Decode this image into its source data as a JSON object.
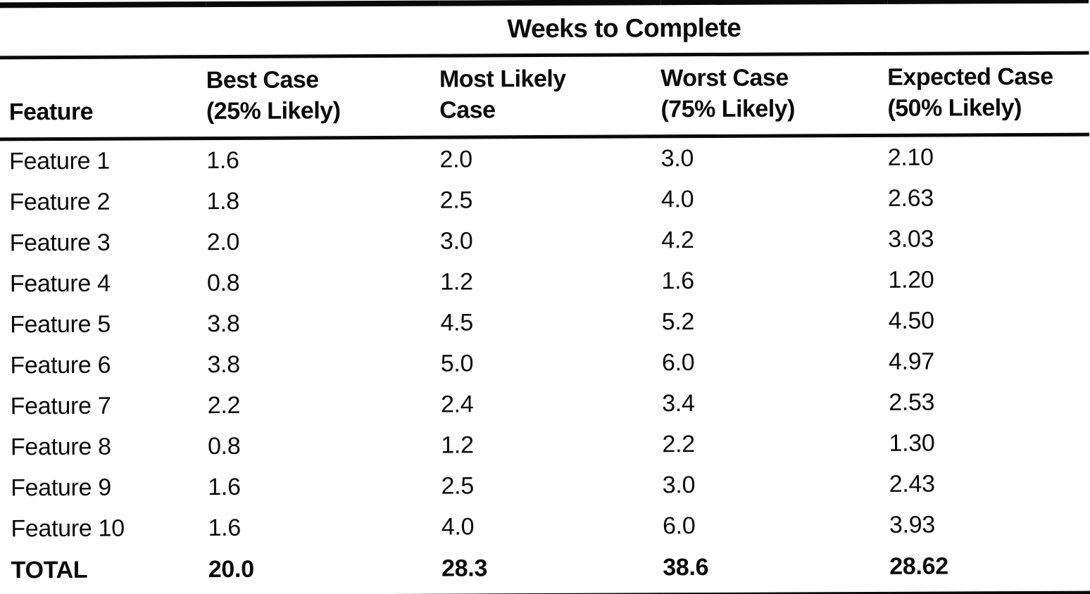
{
  "table": {
    "title": "Weeks to Complete",
    "headers": {
      "feature": "Feature",
      "best_case_line1": "Best Case",
      "best_case_line2": "(25% Likely)",
      "most_likely_line1": "Most Likely",
      "most_likely_line2": "Case",
      "worst_case_line1": "Worst Case",
      "worst_case_line2": "(75% Likely)",
      "expected_case_line1": "Expected Case",
      "expected_case_line2": "(50% Likely)"
    },
    "rows": [
      {
        "feature": "Feature 1",
        "best_case": "1.6",
        "most_likely": "2.0",
        "worst_case": "3.0",
        "expected_case": "2.10"
      },
      {
        "feature": "Feature 2",
        "best_case": "1.8",
        "most_likely": "2.5",
        "worst_case": "4.0",
        "expected_case": "2.63"
      },
      {
        "feature": "Feature 3",
        "best_case": "2.0",
        "most_likely": "3.0",
        "worst_case": "4.2",
        "expected_case": "3.03"
      },
      {
        "feature": "Feature 4",
        "best_case": "0.8",
        "most_likely": "1.2",
        "worst_case": "1.6",
        "expected_case": "1.20"
      },
      {
        "feature": "Feature 5",
        "best_case": "3.8",
        "most_likely": "4.5",
        "worst_case": "5.2",
        "expected_case": "4.50"
      },
      {
        "feature": "Feature 6",
        "best_case": "3.8",
        "most_likely": "5.0",
        "worst_case": "6.0",
        "expected_case": "4.97"
      },
      {
        "feature": "Feature 7",
        "best_case": "2.2",
        "most_likely": "2.4",
        "worst_case": "3.4",
        "expected_case": "2.53"
      },
      {
        "feature": "Feature 8",
        "best_case": "0.8",
        "most_likely": "1.2",
        "worst_case": "2.2",
        "expected_case": "1.30"
      },
      {
        "feature": "Feature 9",
        "best_case": "1.6",
        "most_likely": "2.5",
        "worst_case": "3.0",
        "expected_case": "2.43"
      },
      {
        "feature": "Feature 10",
        "best_case": "1.6",
        "most_likely": "4.0",
        "worst_case": "6.0",
        "expected_case": "3.93"
      }
    ],
    "total": {
      "label": "TOTAL",
      "best_case": "20.0",
      "most_likely": "28.3",
      "worst_case": "38.6",
      "expected_case": "28.62"
    }
  }
}
